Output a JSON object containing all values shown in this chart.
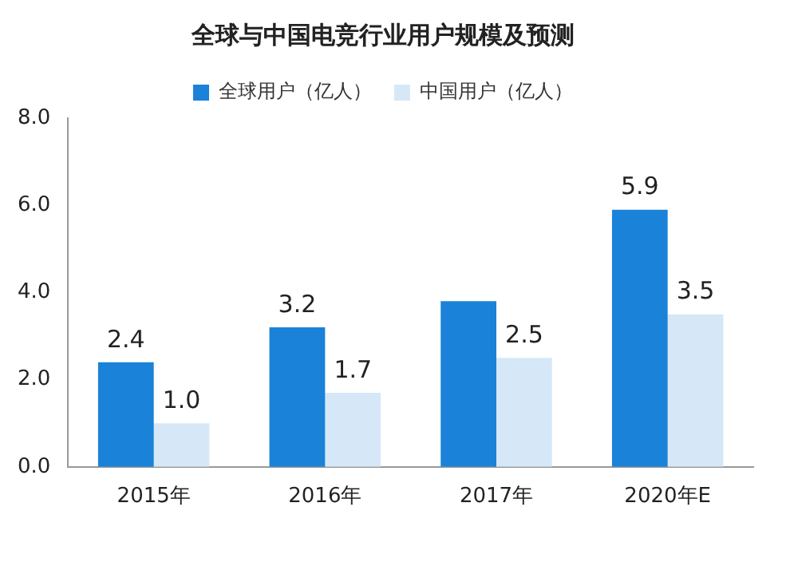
{
  "chart_data": {
    "type": "bar",
    "title": "全球与中国电竞行业用户规模及预测",
    "categories": [
      "2015年",
      "2016年",
      "2017年",
      "2020年E"
    ],
    "series": [
      {
        "name": "全球用户（亿人）",
        "color": "#1a82d8",
        "values": [
          2.4,
          3.2,
          3.8,
          5.9
        ],
        "value_labels": [
          "2.4",
          "3.2",
          null,
          "5.9"
        ]
      },
      {
        "name": "中国用户（亿人）",
        "color": "#d6e8f8",
        "values": [
          1.0,
          1.7,
          2.5,
          3.5
        ],
        "value_labels": [
          "1.0",
          "1.7",
          "2.5",
          "3.5"
        ]
      }
    ],
    "ylim": [
      0,
      8
    ],
    "yticks": [
      {
        "value": 0,
        "label": "0.0"
      },
      {
        "value": 2,
        "label": "2.0"
      },
      {
        "value": 4,
        "label": "4.0"
      },
      {
        "value": 6,
        "label": "6.0"
      },
      {
        "value": 8,
        "label": "8.0"
      }
    ],
    "grid": false,
    "legend": "top"
  }
}
